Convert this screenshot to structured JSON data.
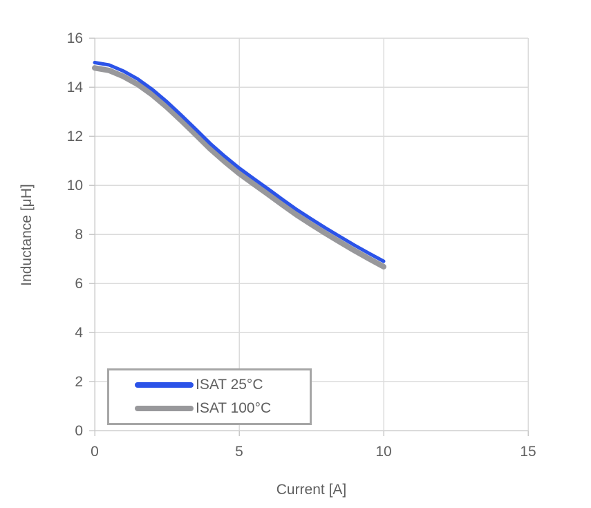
{
  "chart_data": {
    "type": "line",
    "title": "",
    "xlabel": "Current [A]",
    "ylabel": "Inductance [μH]",
    "xlim": [
      0,
      15
    ],
    "ylim": [
      0,
      16
    ],
    "x_ticks": [
      0,
      5,
      10,
      15
    ],
    "y_ticks": [
      0,
      2,
      4,
      6,
      8,
      10,
      12,
      14,
      16
    ],
    "grid": true,
    "legend_position": "inside-bottom-left",
    "x": [
      0,
      0.5,
      1,
      1.5,
      2,
      2.5,
      3,
      3.5,
      4,
      4.5,
      5,
      5.5,
      6,
      6.5,
      7,
      7.5,
      8,
      8.5,
      9,
      9.5,
      10
    ],
    "series": [
      {
        "name": "ISAT 25°C",
        "color": "#2b53e8",
        "line_width": 5,
        "values": [
          15.0,
          14.9,
          14.65,
          14.32,
          13.9,
          13.4,
          12.85,
          12.28,
          11.7,
          11.18,
          10.7,
          10.27,
          9.85,
          9.42,
          9.0,
          8.62,
          8.25,
          7.9,
          7.55,
          7.22,
          6.9
        ]
      },
      {
        "name": "ISAT 100°C",
        "color": "#98989b",
        "line_width": 8,
        "values": [
          14.78,
          14.68,
          14.43,
          14.1,
          13.68,
          13.18,
          12.63,
          12.06,
          11.48,
          10.96,
          10.48,
          10.05,
          9.63,
          9.2,
          8.78,
          8.4,
          8.03,
          7.68,
          7.33,
          7.0,
          6.68
        ]
      }
    ]
  },
  "colors": {
    "background": "#ffffff",
    "grid": "#dbdbdb",
    "axis": "#c9c9c9",
    "text": "#5f5f5f",
    "legend_border": "#a6a6a6"
  }
}
